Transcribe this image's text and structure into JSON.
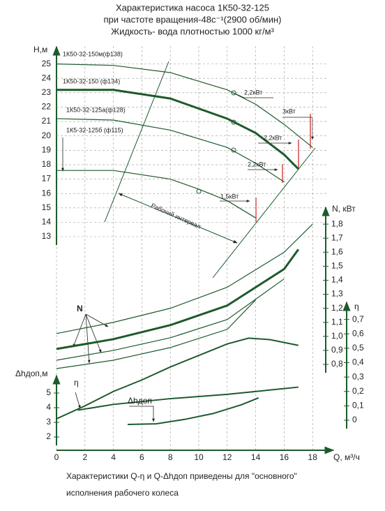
{
  "chart_data": {
    "type": "line",
    "title": [
      "Характеристика насоса 1К50-32-125",
      "при частоте вращения-48с⁻¹(2900 об/мин)",
      "Жидкость- вода плотностью 1000 кг/м³"
    ],
    "xlabel": "Q, м³/ч",
    "xlim": [
      0,
      20
    ],
    "xticks": [
      0,
      2,
      4,
      6,
      8,
      10,
      12,
      14,
      16,
      18
    ],
    "ylabel": "Н,м",
    "ylim": [
      13,
      26
    ],
    "yticks": [
      13,
      14,
      15,
      16,
      17,
      18,
      19,
      20,
      21,
      22,
      23,
      24,
      25
    ],
    "y2label": "N, кВт",
    "y2lim": [
      0.8,
      1.9
    ],
    "y2ticks": [
      {
        "value": 0.8,
        "label": "0,8"
      },
      {
        "value": 0.9,
        "label": "0,9"
      },
      {
        "value": 1.0,
        "label": "1,0"
      },
      {
        "value": 1.1,
        "label": "1,1"
      },
      {
        "value": 1.2,
        "label": "1,2"
      },
      {
        "value": 1.3,
        "label": "1,3"
      },
      {
        "value": 1.4,
        "label": "1,4"
      },
      {
        "value": 1.5,
        "label": "1,5"
      },
      {
        "value": 1.6,
        "label": "1,6"
      },
      {
        "value": 1.7,
        "label": "1,7"
      },
      {
        "value": 1.8,
        "label": "1,8"
      }
    ],
    "y3label": "η",
    "y3lim": [
      0,
      0.8
    ],
    "y3ticks": [
      0,
      {
        "value": 0.1,
        "label": "0,1"
      },
      {
        "value": 0.2,
        "label": "0,2"
      },
      {
        "value": 0.3,
        "label": "0,3"
      },
      {
        "value": 0.4,
        "label": "0,4"
      },
      {
        "value": 0.5,
        "label": "0,5"
      },
      {
        "value": 0.6,
        "label": "0,6"
      },
      {
        "value": 0.7,
        "label": "0,7"
      }
    ],
    "y4label": "Δhдоп,м",
    "y4lim": [
      2,
      6
    ],
    "y4ticks": [
      2,
      3,
      4,
      5
    ],
    "grid": true,
    "color": "#1d5a2c",
    "series": [
      {
        "name": "1К50-32-150м(ф138)",
        "axis": "y",
        "width": 1.2,
        "x": [
          0,
          4,
          8,
          12,
          14,
          16,
          18
        ],
        "values": [
          25.0,
          24.9,
          24.4,
          23.2,
          22.2,
          20.8,
          19.2
        ]
      },
      {
        "name": "1К50-32-150 (ф134)",
        "axis": "y",
        "width": 3,
        "x": [
          0,
          4,
          8,
          12,
          14,
          16,
          17
        ],
        "values": [
          23.2,
          23.2,
          22.6,
          21.2,
          20.2,
          18.7,
          17.7
        ]
      },
      {
        "name": "1К50-32-125а(ф128)",
        "axis": "y",
        "width": 1.2,
        "x": [
          0,
          4,
          8,
          12,
          14,
          16
        ],
        "values": [
          21.2,
          21.1,
          20.4,
          19.2,
          18.1,
          16.8
        ]
      },
      {
        "name": "1К5-32-125б (ф115)",
        "axis": "y",
        "width": 1.2,
        "x": [
          0,
          4,
          8,
          10,
          12,
          14
        ],
        "values": [
          17.6,
          17.6,
          17.0,
          16.3,
          15.5,
          14.3
        ]
      },
      {
        "axis": "y2",
        "width": 1.2,
        "x": [
          0,
          4,
          8,
          12,
          16,
          18
        ],
        "values": [
          1.02,
          1.1,
          1.2,
          1.35,
          1.6,
          1.8
        ]
      },
      {
        "axis": "y2",
        "width": 3,
        "x": [
          0,
          4,
          8,
          12,
          16,
          17
        ],
        "values": [
          0.91,
          0.98,
          1.08,
          1.22,
          1.48,
          1.62
        ]
      },
      {
        "axis": "y2",
        "width": 1.2,
        "x": [
          0,
          4,
          8,
          12,
          16
        ],
        "values": [
          0.83,
          0.9,
          0.99,
          1.12,
          1.41
        ]
      },
      {
        "axis": "y2",
        "width": 1.2,
        "x": [
          0,
          4,
          8,
          12,
          14
        ],
        "values": [
          0.77,
          0.83,
          0.92,
          1.05,
          1.26
        ]
      },
      {
        "name": "η",
        "axis": "y3",
        "width": 2,
        "x": [
          0,
          2,
          4,
          6,
          8,
          10,
          12,
          13.5,
          15,
          17
        ],
        "values": [
          0.01,
          0.1,
          0.2,
          0.28,
          0.37,
          0.45,
          0.53,
          0.57,
          0.56,
          0.52
        ]
      },
      {
        "axis": "y3",
        "width": 2,
        "x": [
          1.5,
          4,
          8,
          12,
          16,
          17
        ],
        "values": [
          0.07,
          0.11,
          0.15,
          0.18,
          0.22,
          0.23
        ]
      },
      {
        "name": "Δhдоп",
        "axis": "y4",
        "width": 2,
        "x": [
          5,
          7,
          9,
          11,
          13,
          14.2
        ],
        "values": [
          2.86,
          2.9,
          3.2,
          3.6,
          4.2,
          4.67
        ]
      }
    ],
    "annotations": [
      "2,2кВт",
      "3кВт",
      "2,2кВт",
      "2,2кВт",
      "1,5кВт",
      "Рабочий интервал",
      "N"
    ],
    "footer": [
      "Характеристики Q-η и Q-Δhдоп приведены для \"основного\"",
      "исполнения рабочего колеса"
    ]
  }
}
